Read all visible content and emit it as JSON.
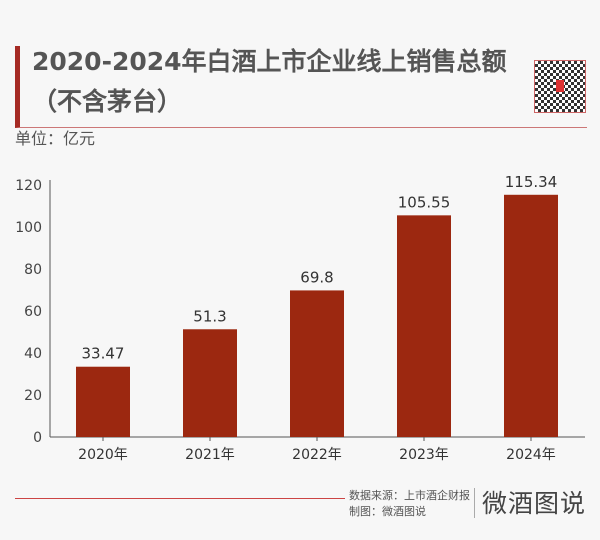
{
  "header": {
    "title_line1": "2020-2024年白酒上市企业线上销售总额",
    "title_line2": "（不含茅台）",
    "unit": "单位：亿元"
  },
  "footer": {
    "source": "数据来源：上市酒企财报",
    "made_by": "制图：微酒图说",
    "logo": "微酒图说"
  },
  "colors": {
    "bar": "#9c2810",
    "accent": "#a52a24"
  },
  "chart_data": {
    "type": "bar",
    "categories": [
      "2020年",
      "2021年",
      "2022年",
      "2023年",
      "2024年"
    ],
    "values": [
      33.47,
      51.3,
      69.8,
      105.55,
      115.34
    ],
    "labels": [
      "33.47",
      "51.3",
      "69.8",
      "105.55",
      "115.34"
    ],
    "ylim": [
      0,
      120
    ],
    "yticks": [
      0,
      20,
      40,
      60,
      80,
      100,
      120
    ],
    "grid": false
  }
}
